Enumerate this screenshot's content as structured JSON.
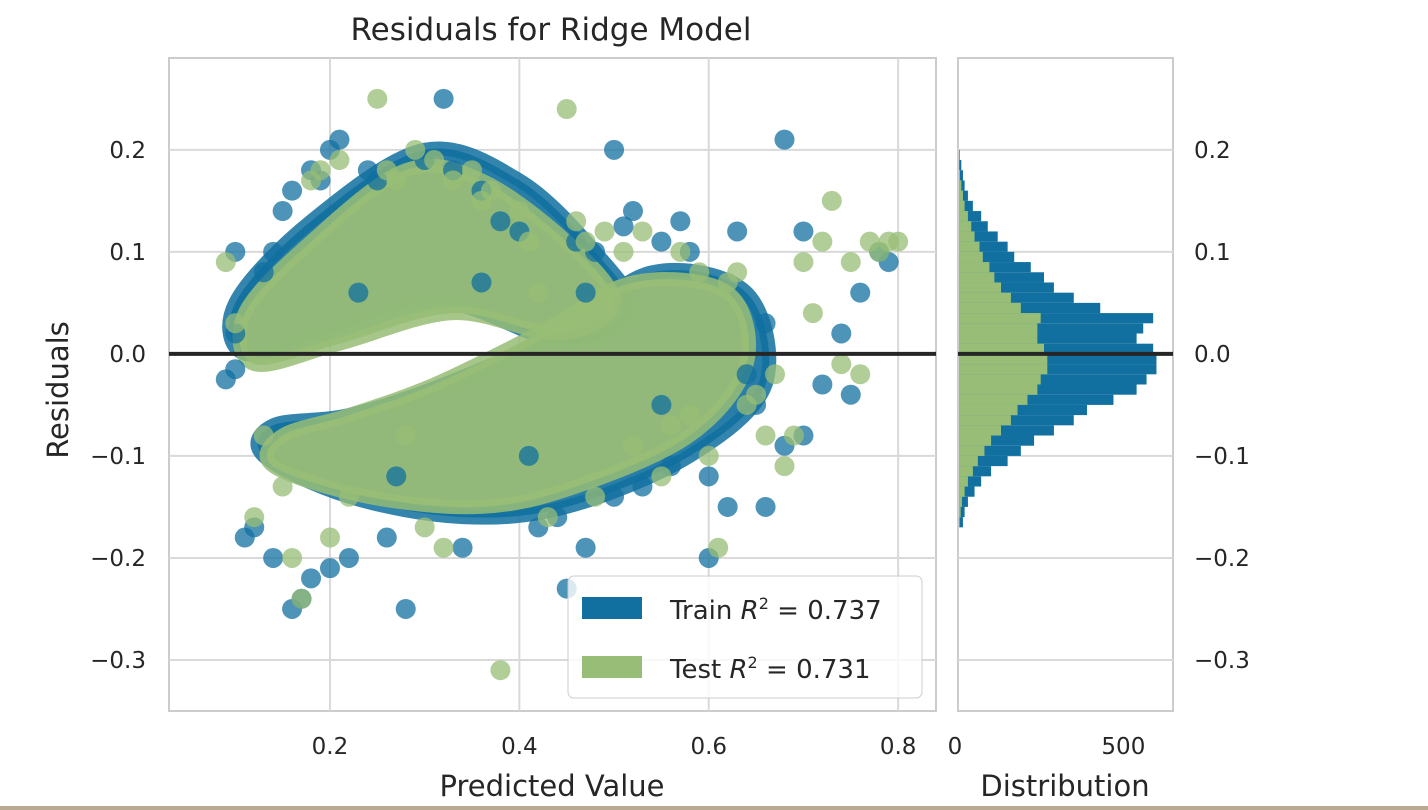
{
  "chart_data": [
    {
      "type": "scatter",
      "title": "Residuals for Ridge Model",
      "xlabel": "Predicted Value",
      "ylabel": "Residuals",
      "xlim": [
        0.03,
        0.84
      ],
      "ylim": [
        -0.35,
        0.29
      ],
      "xticks": [
        0.2,
        0.4,
        0.6,
        0.8
      ],
      "xtick_labels": [
        "0.2",
        "0.4",
        "0.6",
        "0.8"
      ],
      "yticks": [
        0.2,
        0.1,
        0.0,
        -0.1,
        -0.2,
        -0.3
      ],
      "ytick_labels": [
        "0.2",
        "0.1",
        "0.0",
        "−0.1",
        "−0.2",
        "−0.3"
      ],
      "grid": true,
      "zero_line": 0.0,
      "legend_position": "lower-right",
      "series": [
        {
          "name": "Train R² = 0.737",
          "legend_prefix": "Train",
          "legend_r2": "0.737",
          "color": "#1170a0",
          "points": [
            [
              0.09,
              -0.025
            ],
            [
              0.1,
              -0.015
            ],
            [
              0.1,
              0.1
            ],
            [
              0.1,
              0.02
            ],
            [
              0.11,
              -0.18
            ],
            [
              0.12,
              -0.17
            ],
            [
              0.13,
              0.08
            ],
            [
              0.14,
              0.1
            ],
            [
              0.14,
              -0.2
            ],
            [
              0.15,
              0.14
            ],
            [
              0.16,
              0.16
            ],
            [
              0.16,
              -0.25
            ],
            [
              0.17,
              -0.24
            ],
            [
              0.18,
              0.18
            ],
            [
              0.18,
              -0.22
            ],
            [
              0.19,
              0.17
            ],
            [
              0.2,
              0.2
            ],
            [
              0.2,
              -0.21
            ],
            [
              0.21,
              0.21
            ],
            [
              0.22,
              -0.2
            ],
            [
              0.24,
              0.18
            ],
            [
              0.25,
              0.17
            ],
            [
              0.26,
              -0.18
            ],
            [
              0.28,
              -0.25
            ],
            [
              0.3,
              0.19
            ],
            [
              0.32,
              0.25
            ],
            [
              0.33,
              0.18
            ],
            [
              0.34,
              -0.19
            ],
            [
              0.36,
              0.16
            ],
            [
              0.38,
              0.13
            ],
            [
              0.4,
              0.12
            ],
            [
              0.42,
              -0.17
            ],
            [
              0.44,
              -0.16
            ],
            [
              0.45,
              -0.23
            ],
            [
              0.46,
              0.11
            ],
            [
              0.47,
              -0.19
            ],
            [
              0.48,
              0.1
            ],
            [
              0.5,
              -0.14
            ],
            [
              0.5,
              0.2
            ],
            [
              0.52,
              0.14
            ],
            [
              0.53,
              -0.13
            ],
            [
              0.55,
              0.11
            ],
            [
              0.56,
              -0.11
            ],
            [
              0.57,
              0.13
            ],
            [
              0.58,
              0.1
            ],
            [
              0.6,
              -0.12
            ],
            [
              0.6,
              -0.2
            ],
            [
              0.62,
              -0.15
            ],
            [
              0.63,
              0.12
            ],
            [
              0.64,
              -0.02
            ],
            [
              0.65,
              -0.05
            ],
            [
              0.66,
              0.03
            ],
            [
              0.66,
              -0.15
            ],
            [
              0.68,
              0.21
            ],
            [
              0.68,
              -0.09
            ],
            [
              0.7,
              -0.08
            ],
            [
              0.7,
              0.12
            ],
            [
              0.72,
              -0.03
            ],
            [
              0.74,
              0.02
            ],
            [
              0.75,
              -0.04
            ],
            [
              0.76,
              0.06
            ],
            [
              0.78,
              0.1
            ],
            [
              0.79,
              0.09
            ],
            [
              0.51,
              0.125
            ],
            [
              0.36,
              0.07
            ],
            [
              0.41,
              -0.1
            ],
            [
              0.55,
              -0.05
            ],
            [
              0.47,
              0.06
            ],
            [
              0.27,
              -0.12
            ],
            [
              0.23,
              0.06
            ]
          ],
          "dense_regions": [
            [
              [
                0.1,
                0.05
              ],
              [
                0.18,
                0.13
              ],
              [
                0.3,
                0.2
              ],
              [
                0.4,
                0.17
              ],
              [
                0.48,
                0.1
              ],
              [
                0.52,
                0.04
              ],
              [
                0.45,
                0.01
              ],
              [
                0.32,
                0.05
              ],
              [
                0.2,
                0.02
              ],
              [
                0.11,
                0.0
              ]
            ],
            [
              [
                0.13,
                -0.1
              ],
              [
                0.22,
                -0.14
              ],
              [
                0.34,
                -0.16
              ],
              [
                0.45,
                -0.15
              ],
              [
                0.58,
                -0.1
              ],
              [
                0.66,
                -0.03
              ],
              [
                0.64,
                0.06
              ],
              [
                0.54,
                0.08
              ],
              [
                0.44,
                0.02
              ],
              [
                0.32,
                -0.03
              ],
              [
                0.22,
                -0.06
              ],
              [
                0.14,
                -0.07
              ]
            ]
          ]
        },
        {
          "name": "Test R² = 0.731",
          "legend_prefix": "Test",
          "legend_r2": "0.731",
          "color": "#98bd76",
          "points": [
            [
              0.09,
              0.09
            ],
            [
              0.1,
              0.03
            ],
            [
              0.12,
              -0.16
            ],
            [
              0.13,
              -0.08
            ],
            [
              0.15,
              -0.13
            ],
            [
              0.16,
              -0.2
            ],
            [
              0.17,
              -0.24
            ],
            [
              0.18,
              0.17
            ],
            [
              0.19,
              0.18
            ],
            [
              0.2,
              -0.18
            ],
            [
              0.21,
              0.19
            ],
            [
              0.22,
              -0.14
            ],
            [
              0.25,
              0.25
            ],
            [
              0.26,
              0.18
            ],
            [
              0.27,
              0.17
            ],
            [
              0.29,
              0.2
            ],
            [
              0.3,
              -0.17
            ],
            [
              0.31,
              0.19
            ],
            [
              0.32,
              -0.19
            ],
            [
              0.33,
              0.17
            ],
            [
              0.35,
              0.18
            ],
            [
              0.36,
              0.15
            ],
            [
              0.37,
              0.16
            ],
            [
              0.38,
              -0.31
            ],
            [
              0.4,
              0.14
            ],
            [
              0.41,
              0.11
            ],
            [
              0.43,
              -0.16
            ],
            [
              0.45,
              0.24
            ],
            [
              0.46,
              0.13
            ],
            [
              0.47,
              0.11
            ],
            [
              0.48,
              -0.14
            ],
            [
              0.49,
              0.12
            ],
            [
              0.51,
              0.1
            ],
            [
              0.52,
              -0.09
            ],
            [
              0.53,
              0.12
            ],
            [
              0.55,
              -0.12
            ],
            [
              0.56,
              -0.07
            ],
            [
              0.57,
              0.1
            ],
            [
              0.59,
              0.08
            ],
            [
              0.6,
              -0.1
            ],
            [
              0.61,
              -0.19
            ],
            [
              0.62,
              0.07
            ],
            [
              0.63,
              0.08
            ],
            [
              0.64,
              -0.05
            ],
            [
              0.66,
              -0.08
            ],
            [
              0.67,
              -0.02
            ],
            [
              0.68,
              -0.11
            ],
            [
              0.7,
              0.09
            ],
            [
              0.71,
              0.04
            ],
            [
              0.72,
              0.11
            ],
            [
              0.73,
              0.15
            ],
            [
              0.74,
              -0.01
            ],
            [
              0.75,
              0.09
            ],
            [
              0.76,
              -0.02
            ],
            [
              0.77,
              0.11
            ],
            [
              0.78,
              0.1
            ],
            [
              0.79,
              0.11
            ],
            [
              0.8,
              0.11
            ],
            [
              0.65,
              -0.04
            ],
            [
              0.69,
              -0.08
            ],
            [
              0.58,
              -0.06
            ],
            [
              0.42,
              0.06
            ],
            [
              0.28,
              -0.08
            ]
          ],
          "dense_regions": [
            [
              [
                0.11,
                0.04
              ],
              [
                0.18,
                0.11
              ],
              [
                0.28,
                0.18
              ],
              [
                0.36,
                0.17
              ],
              [
                0.45,
                0.11
              ],
              [
                0.5,
                0.05
              ],
              [
                0.44,
                0.02
              ],
              [
                0.33,
                0.04
              ],
              [
                0.21,
                0.01
              ],
              [
                0.12,
                -0.01
              ]
            ],
            [
              [
                0.14,
                -0.11
              ],
              [
                0.24,
                -0.14
              ],
              [
                0.36,
                -0.15
              ],
              [
                0.46,
                -0.13
              ],
              [
                0.58,
                -0.08
              ],
              [
                0.64,
                -0.01
              ],
              [
                0.62,
                0.06
              ],
              [
                0.52,
                0.07
              ],
              [
                0.42,
                0.02
              ],
              [
                0.31,
                -0.03
              ],
              [
                0.22,
                -0.06
              ],
              [
                0.15,
                -0.08
              ]
            ]
          ]
        }
      ]
    },
    {
      "type": "bar",
      "orientation": "horizontal",
      "xlabel": "Distribution",
      "xlim": [
        0,
        650
      ],
      "ylim": [
        -0.35,
        0.29
      ],
      "xticks": [
        0,
        500
      ],
      "xtick_labels": [
        "0",
        "500"
      ],
      "yticks": [
        0.2,
        0.1,
        0.0,
        -0.1,
        -0.2,
        -0.3
      ],
      "ytick_labels": [
        "0.2",
        "0.1",
        "0.0",
        "−0.1",
        "−0.2",
        "−0.3"
      ],
      "grid": true,
      "zero_line": 0.0,
      "bin_edges": [
        -0.17,
        -0.16,
        -0.15,
        -0.14,
        -0.13,
        -0.12,
        -0.11,
        -0.1,
        -0.09,
        -0.08,
        -0.07,
        -0.06,
        -0.05,
        -0.04,
        -0.03,
        -0.02,
        -0.01,
        0.0,
        0.01,
        0.02,
        0.03,
        0.04,
        0.05,
        0.06,
        0.07,
        0.08,
        0.09,
        0.1,
        0.11,
        0.12,
        0.13,
        0.14,
        0.15,
        0.16,
        0.17,
        0.18,
        0.19,
        0.2
      ],
      "series": [
        {
          "name": "Train",
          "color": "#1170a0",
          "values": [
            15,
            20,
            30,
            50,
            70,
            100,
            150,
            190,
            230,
            290,
            350,
            390,
            470,
            540,
            570,
            600,
            600,
            590,
            540,
            560,
            590,
            430,
            350,
            290,
            260,
            220,
            170,
            150,
            120,
            90,
            70,
            45,
            30,
            20,
            15,
            10,
            5
          ]
        },
        {
          "name": "Test",
          "color": "#98bd76",
          "values": [
            5,
            8,
            12,
            20,
            30,
            45,
            60,
            80,
            100,
            130,
            160,
            180,
            210,
            240,
            250,
            270,
            270,
            260,
            240,
            240,
            250,
            190,
            160,
            130,
            110,
            95,
            75,
            65,
            50,
            40,
            30,
            20,
            15,
            10,
            6,
            4,
            2
          ]
        }
      ]
    }
  ]
}
